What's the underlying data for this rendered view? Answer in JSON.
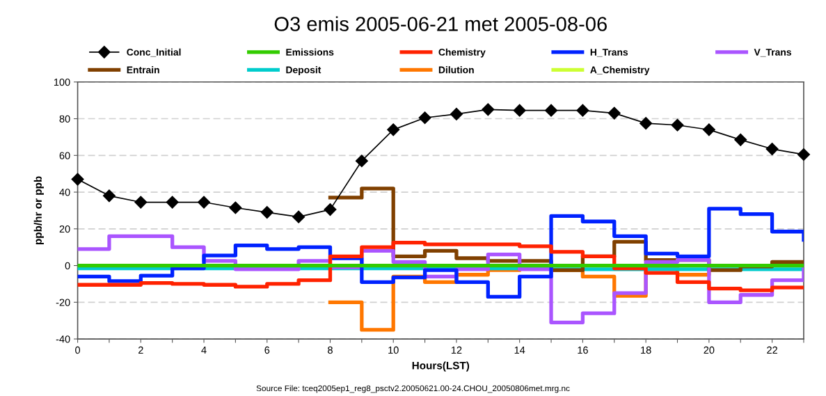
{
  "chart_data": {
    "type": "step",
    "title": "O3 emis 2005-06-21 met 2005-08-06",
    "xlabel": "Hours(LST)",
    "ylabel": "ppb/hr or ppb",
    "x": [
      0,
      1,
      2,
      3,
      4,
      5,
      6,
      7,
      8,
      9,
      10,
      11,
      12,
      13,
      14,
      15,
      16,
      17,
      18,
      19,
      20,
      21,
      22,
      23
    ],
    "xlim": [
      0,
      23
    ],
    "xticks": [
      0,
      {
        "value": 1,
        "label": null
      },
      2,
      {
        "value": 3,
        "label": null
      },
      4,
      {
        "value": 5,
        "label": null
      },
      6,
      {
        "value": 7,
        "label": null
      },
      8,
      {
        "value": 9,
        "label": null
      },
      10,
      {
        "value": 11,
        "label": null
      },
      12,
      {
        "value": 13,
        "label": null
      },
      14,
      {
        "value": 15,
        "label": null
      },
      16,
      {
        "value": 17,
        "label": null
      },
      18,
      {
        "value": 19,
        "label": null
      },
      20,
      {
        "value": 21,
        "label": null
      },
      22,
      {
        "value": 23,
        "label": null
      }
    ],
    "ylim": [
      -40,
      100
    ],
    "yticks": [
      -40,
      -20,
      0,
      20,
      40,
      60,
      80,
      100
    ],
    "grid": "y",
    "legend": "top",
    "series": [
      {
        "name": "Conc_Initial",
        "type": "line",
        "marker": "diamond",
        "color": "#000000",
        "values": [
          47,
          38,
          34.5,
          34.5,
          34.5,
          31.5,
          29,
          26.5,
          30.5,
          57,
          74,
          80.5,
          82.5,
          85,
          84.5,
          84.5,
          84.5,
          83,
          77.5,
          76.5,
          74,
          68.5,
          63.5,
          60.5
        ]
      },
      {
        "name": "Emissions",
        "color": "#33cc00",
        "values": [
          0,
          0,
          0,
          0,
          0,
          0,
          0,
          0,
          0,
          0,
          0,
          0,
          0,
          0,
          0,
          0,
          0,
          0,
          0,
          0,
          0,
          0,
          0,
          0
        ]
      },
      {
        "name": "Chemistry",
        "color": "#ff2200",
        "values": [
          -10.5,
          -10.5,
          -9.5,
          -10,
          -10.5,
          -11.5,
          -10,
          -8,
          5,
          10,
          12.5,
          11.5,
          11.5,
          11.5,
          10.5,
          7.5,
          5,
          -1.5,
          -4,
          -9,
          -12.5,
          -13.5,
          -12,
          -12
        ]
      },
      {
        "name": "H_Trans",
        "color": "#0022ff",
        "values": [
          -6,
          -8.5,
          -5.5,
          -1.5,
          5.5,
          11,
          9,
          10,
          4,
          -9,
          -6.5,
          -2.5,
          -9,
          -17,
          -6,
          27,
          24,
          16,
          6.5,
          5,
          31,
          28,
          18.5,
          14
        ]
      },
      {
        "name": "V_Trans",
        "color": "#aa55ff",
        "values": [
          9,
          16,
          16,
          10,
          2.5,
          -2,
          -2,
          2.5,
          -1,
          8,
          2,
          -6,
          -2,
          6,
          -2,
          -31,
          -26,
          -15,
          2,
          3,
          -20,
          -16,
          -8,
          -1
        ]
      },
      {
        "name": "Entrain",
        "color": "#804000",
        "values": [
          null,
          null,
          null,
          null,
          null,
          null,
          null,
          null,
          37,
          42,
          5,
          8,
          4,
          2.5,
          2.5,
          -2.5,
          5,
          13,
          3,
          3,
          -2.5,
          -0.5,
          2,
          2
        ]
      },
      {
        "name": "Deposit",
        "color": "#00cccc",
        "values": [
          -1.5,
          -1.5,
          -1.5,
          -1.5,
          -1.5,
          -1.5,
          -1.5,
          -1.5,
          -1.5,
          -1.5,
          -1.5,
          -1.5,
          -1.5,
          -1.5,
          -1.5,
          -2,
          -2,
          -2,
          -2,
          -2,
          -2,
          -2,
          -2,
          -2
        ]
      },
      {
        "name": "Dilution",
        "color": "#ff7700",
        "values": [
          null,
          null,
          null,
          null,
          null,
          null,
          null,
          null,
          -20,
          -35,
          -6,
          -9,
          -5,
          -2.5,
          0,
          -2.5,
          -6,
          -16.5,
          -1,
          -5,
          0,
          null,
          null,
          null
        ]
      },
      {
        "name": "A_Chemistry",
        "color": "#ccff33",
        "values": [
          null,
          null,
          null,
          null,
          null,
          null,
          null,
          null,
          null,
          null,
          null,
          null,
          null,
          null,
          null,
          null,
          null,
          null,
          null,
          null,
          null,
          null,
          null,
          null
        ]
      }
    ],
    "annotations": [
      "Source File: tceq2005ep1_reg8_psctv2.20050621.00-24.CHOU_20050806met.mrg.nc"
    ]
  }
}
